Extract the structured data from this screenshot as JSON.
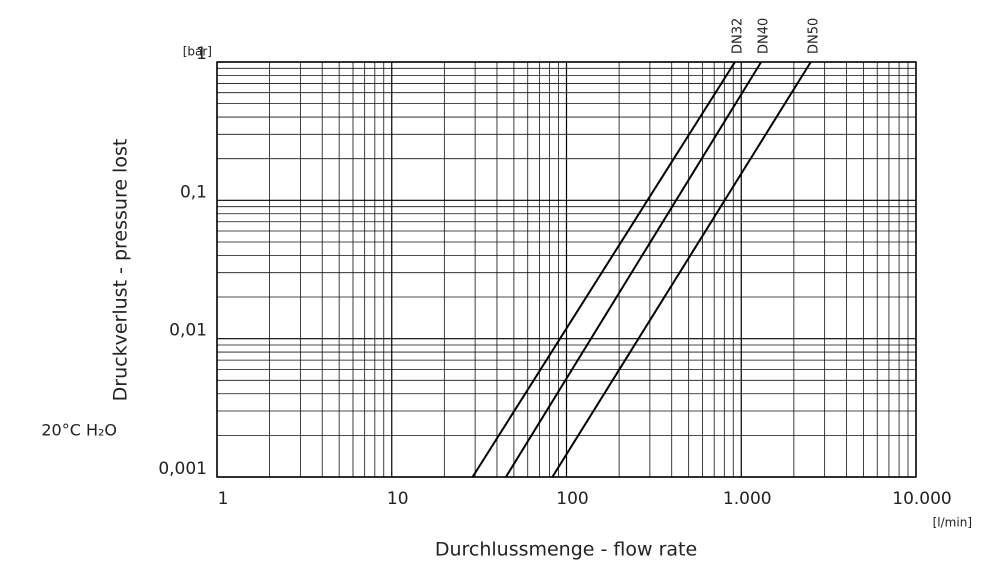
{
  "chart_data": {
    "type": "line",
    "xlabel": "Durchlussmenge - flow rate",
    "ylabel": "Druckverlust - pressure lost",
    "x_unit": "[l/min]",
    "y_unit": "[bar]",
    "annotation": "20°C H₂O",
    "log_x": true,
    "log_y": true,
    "grid": true,
    "minor_grid": true,
    "xlim": [
      1,
      10000
    ],
    "ylim": [
      0.001,
      1
    ],
    "xticks": [
      1,
      10,
      100,
      {
        "value": 1000,
        "label": "1.000"
      },
      {
        "value": 10000,
        "label": "10.000"
      }
    ],
    "yticks": [
      {
        "value": 0.001,
        "label": "0,001"
      },
      {
        "value": 0.01,
        "label": "0,01"
      },
      {
        "value": 0.1,
        "label": "0,1"
      },
      1
    ],
    "series": [
      {
        "name": "DN32",
        "color": "#000000",
        "x": [
          29,
          920
        ],
        "values": [
          0.001,
          1
        ]
      },
      {
        "name": "DN40",
        "color": "#000000",
        "x": [
          45,
          1300
        ],
        "values": [
          0.001,
          1
        ]
      },
      {
        "name": "DN50",
        "color": "#000000",
        "x": [
          83,
          2500
        ],
        "values": [
          0.001,
          1
        ]
      }
    ]
  }
}
